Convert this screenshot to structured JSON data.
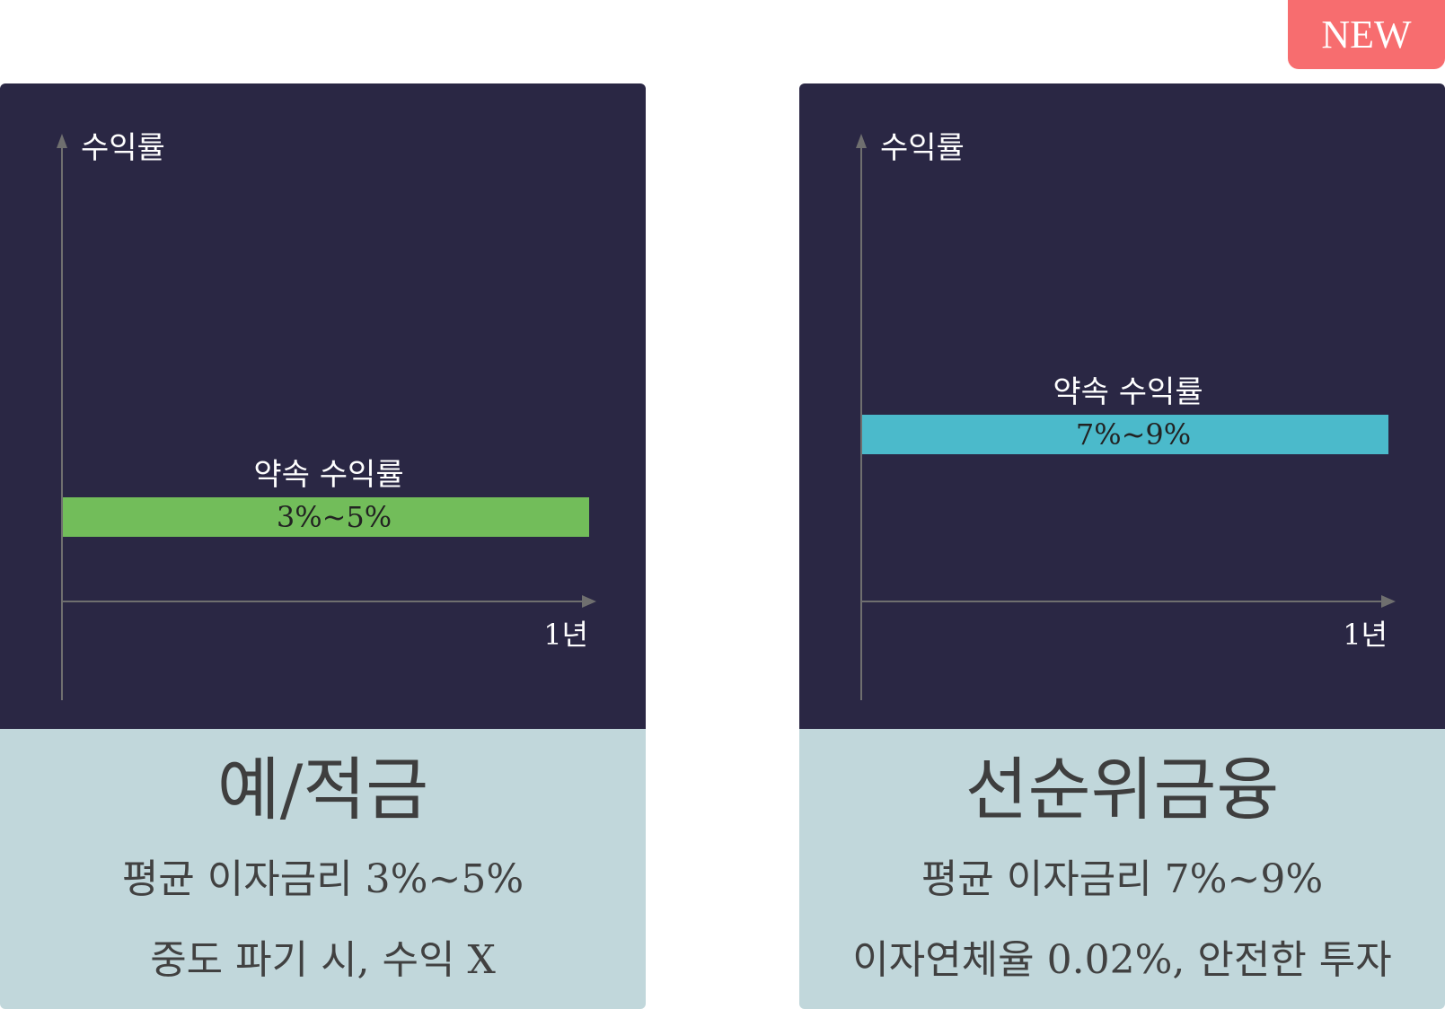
{
  "badge": {
    "label": "NEW"
  },
  "colors": {
    "chart_bg": "#2a2744",
    "info_bg": "#c1d7db",
    "axis": "#6f6f6f",
    "badge": "#f76d6f"
  },
  "chart_data": [
    {
      "type": "bar",
      "ylabel": "수익률",
      "xlabel": "1년",
      "bar_caption": "약속 수익률",
      "bar_label": "3%~5%",
      "range": [
        3,
        5
      ],
      "bar_color": "#72bd5a",
      "ylim": [
        0,
        20
      ],
      "grid": false
    },
    {
      "type": "bar",
      "ylabel": "수익률",
      "xlabel": "1년",
      "bar_caption": "약속 수익률",
      "bar_label": "7%~9%",
      "range": [
        7,
        9
      ],
      "bar_color": "#4bbacb",
      "ylim": [
        0,
        20
      ],
      "grid": false
    }
  ],
  "cards": [
    {
      "title": "예/적금",
      "line1": "평균 이자금리 3%~5%",
      "line2": "중도 파기 시, 수익 X"
    },
    {
      "title": "선순위금융",
      "line1": "평균 이자금리 7%~9%",
      "line2": "이자연체율 0.02%, 안전한 투자"
    }
  ]
}
